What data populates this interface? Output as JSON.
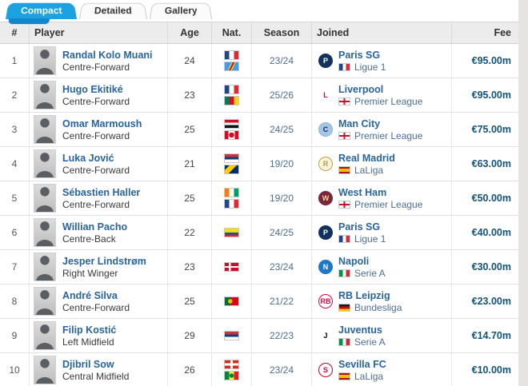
{
  "tabs": [
    {
      "label": "Compact",
      "active": true
    },
    {
      "label": "Detailed",
      "active": false
    },
    {
      "label": "Gallery",
      "active": false
    }
  ],
  "colors": {
    "accent_blue": "#1ca1e1",
    "link_blue": "#2864a0",
    "fee_navy": "#13537a",
    "header_bg": "#ececec"
  },
  "table": {
    "columns": {
      "rank": "#",
      "player": "Player",
      "age": "Age",
      "nat": "Nat.",
      "season": "Season",
      "joined": "Joined",
      "fee": "Fee"
    },
    "rows": [
      {
        "rank": "1",
        "name": "Randal Kolo Muani",
        "position": "Centre-Forward",
        "age": "24",
        "nationalities": [
          "France",
          "DR Congo"
        ],
        "season": "23/24",
        "club": "Paris SG",
        "league": "Ligue 1",
        "league_country": "France",
        "fee": "€95.00m",
        "logo": {
          "bg": "#12315e",
          "fg": "#ffffff",
          "border": "#12315e",
          "initial": "P"
        }
      },
      {
        "rank": "2",
        "name": "Hugo Ekitiké",
        "position": "Centre-Forward",
        "age": "23",
        "nationalities": [
          "France",
          "Cameroon"
        ],
        "season": "25/26",
        "club": "Liverpool",
        "league": "Premier League",
        "league_country": "England",
        "fee": "€95.00m",
        "logo": {
          "bg": "#ffffff",
          "fg": "#c8102e",
          "border": "#ffffff",
          "initial": "L"
        }
      },
      {
        "rank": "3",
        "name": "Omar Marmoush",
        "position": "Centre-Forward",
        "age": "25",
        "nationalities": [
          "Egypt",
          "Canada"
        ],
        "season": "24/25",
        "club": "Man City",
        "league": "Premier League",
        "league_country": "England",
        "fee": "€75.00m",
        "logo": {
          "bg": "#a3c5e8",
          "fg": "#1c2c5b",
          "border": "#8fb4d8",
          "initial": "C"
        }
      },
      {
        "rank": "4",
        "name": "Luka Jović",
        "position": "Centre-Forward",
        "age": "21",
        "nationalities": [
          "Serbia",
          "Bosnia-Herzegovina"
        ],
        "season": "19/20",
        "club": "Real Madrid",
        "league": "LaLiga",
        "league_country": "Spain",
        "fee": "€63.00m",
        "logo": {
          "bg": "#fbf4dc",
          "fg": "#b79b48",
          "border": "#c3a343",
          "initial": "R"
        }
      },
      {
        "rank": "5",
        "name": "Sébastien Haller",
        "position": "Centre-Forward",
        "age": "25",
        "nationalities": [
          "Ivory Coast",
          "France"
        ],
        "season": "19/20",
        "club": "West Ham",
        "league": "Premier League",
        "league_country": "England",
        "fee": "€50.00m",
        "logo": {
          "bg": "#7a2638",
          "fg": "#f2d8a0",
          "border": "#7a2638",
          "initial": "W"
        }
      },
      {
        "rank": "6",
        "name": "Willian Pacho",
        "position": "Centre-Back",
        "age": "22",
        "nationalities": [
          "Ecuador"
        ],
        "season": "24/25",
        "club": "Paris SG",
        "league": "Ligue 1",
        "league_country": "France",
        "fee": "€40.00m",
        "logo": {
          "bg": "#12315e",
          "fg": "#ffffff",
          "border": "#12315e",
          "initial": "P"
        }
      },
      {
        "rank": "7",
        "name": "Jesper Lindstrøm",
        "position": "Right Winger",
        "age": "23",
        "nationalities": [
          "Denmark"
        ],
        "season": "23/24",
        "club": "Napoli",
        "league": "Serie A",
        "league_country": "Italy",
        "fee": "€30.00m",
        "logo": {
          "bg": "#1e78c8",
          "fg": "#ffffff",
          "border": "#1e78c8",
          "initial": "N"
        }
      },
      {
        "rank": "8",
        "name": "André Silva",
        "position": "Centre-Forward",
        "age": "25",
        "nationalities": [
          "Portugal"
        ],
        "season": "21/22",
        "club": "RB Leipzig",
        "league": "Bundesliga",
        "league_country": "Germany",
        "fee": "€23.00m",
        "logo": {
          "bg": "#ffffff",
          "fg": "#dd0741",
          "border": "#dd0741",
          "initial": "RB"
        }
      },
      {
        "rank": "9",
        "name": "Filip Kostić",
        "position": "Left Midfield",
        "age": "29",
        "nationalities": [
          "Serbia"
        ],
        "season": "22/23",
        "club": "Juventus",
        "league": "Serie A",
        "league_country": "Italy",
        "fee": "€14.70m",
        "logo": {
          "bg": "#ffffff",
          "fg": "#000000",
          "border": "#ffffff",
          "initial": "J"
        }
      },
      {
        "rank": "10",
        "name": "Djibril Sow",
        "position": "Central Midfield",
        "age": "26",
        "nationalities": [
          "Switzerland",
          "Senegal"
        ],
        "season": "23/24",
        "club": "Sevilla FC",
        "league": "LaLiga",
        "league_country": "Spain",
        "fee": "€10.00m",
        "logo": {
          "bg": "#ffffff",
          "fg": "#d00027",
          "border": "#d00027",
          "initial": "S"
        }
      }
    ]
  }
}
